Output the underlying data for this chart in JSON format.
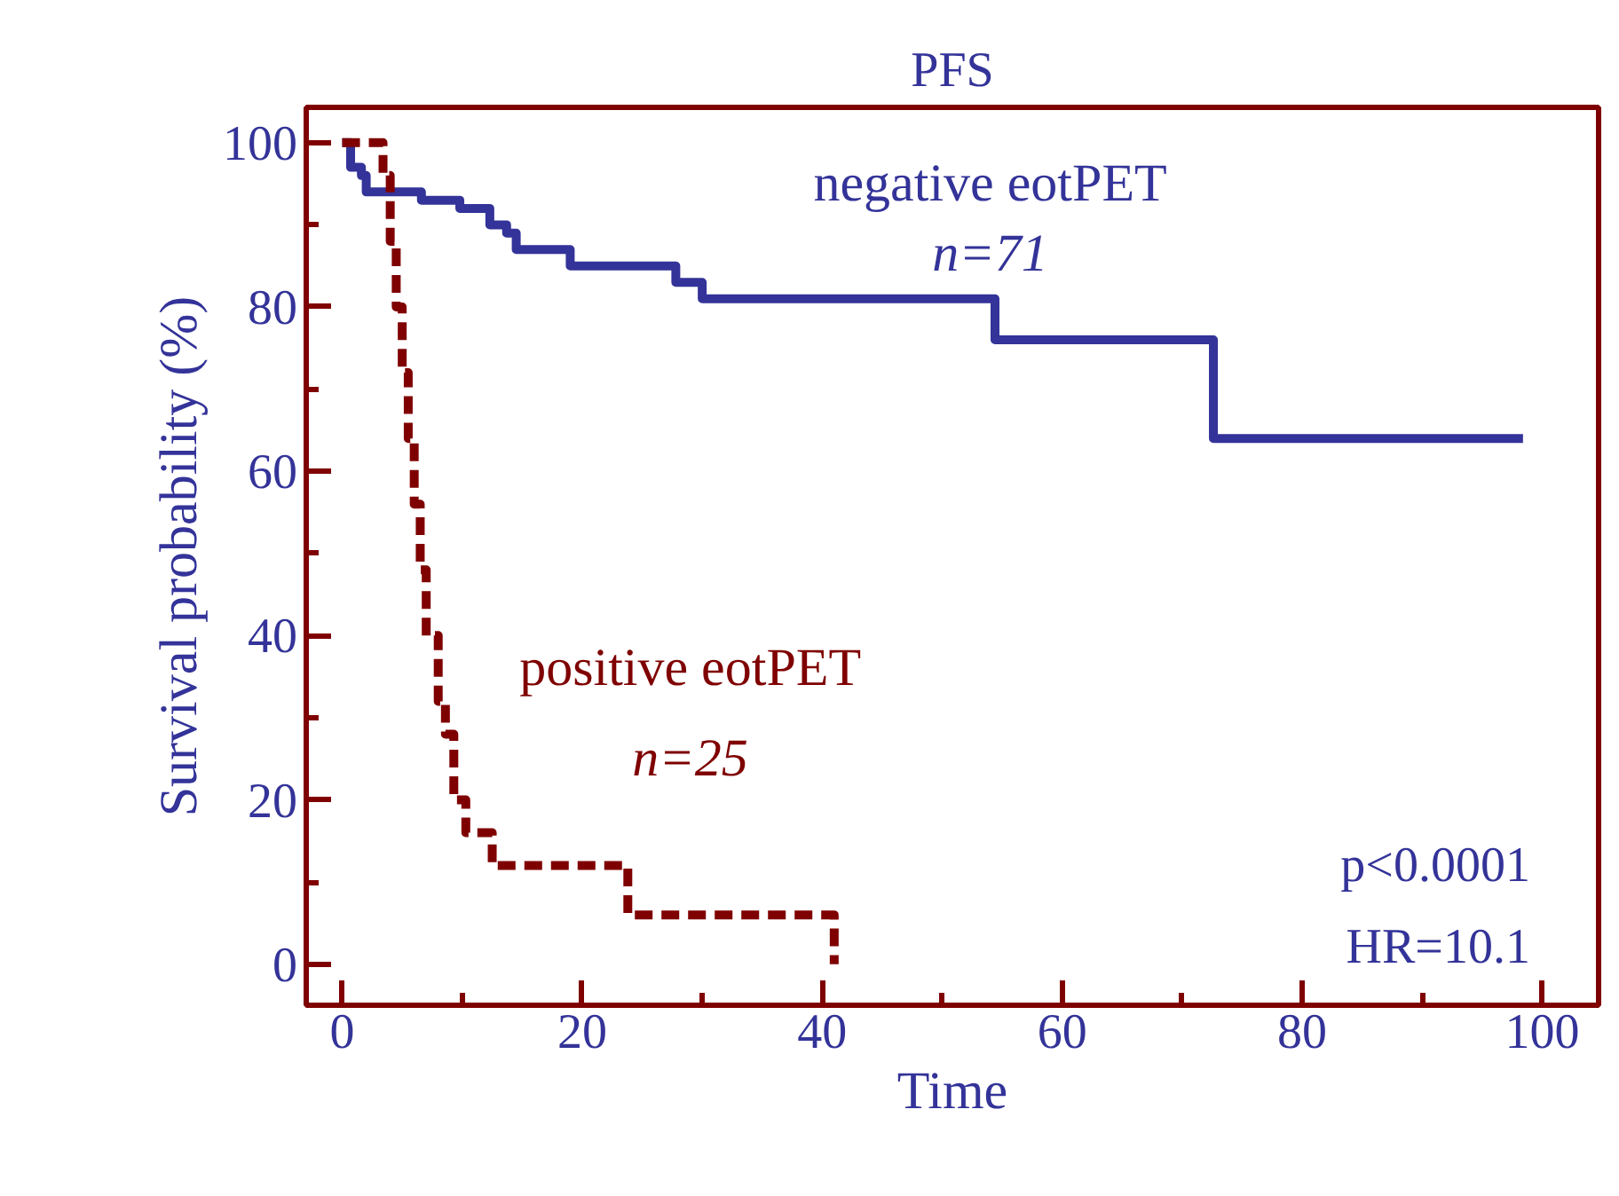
{
  "chart_data": {
    "type": "step",
    "title": "PFS",
    "xlabel": "Time",
    "ylabel": "Survival probability (%)",
    "xlim": [
      -3,
      104.7
    ],
    "ylim": [
      -5,
      104.3
    ],
    "xticks": [
      0,
      20,
      40,
      60,
      80,
      100
    ],
    "yticks": [
      0,
      20,
      40,
      60,
      80,
      100
    ],
    "grid": false,
    "marker": "none",
    "series": [
      {
        "name": "negative eotPET",
        "color": "#333399",
        "line_style": "solid",
        "x": [
          0,
          0.7,
          1.6,
          2,
          6.6,
          9.8,
          12.3,
          13.7,
          14.5,
          19,
          27.8,
          30,
          54.4,
          72.6,
          98.4
        ],
        "values": [
          100,
          97,
          96,
          94,
          93,
          92,
          90,
          89,
          87,
          85,
          83,
          81,
          76,
          64,
          64
        ]
      },
      {
        "name": "positive eotPET",
        "color": "#7f0000",
        "line_style": "dashed",
        "x": [
          0,
          3.4,
          4,
          4.5,
          5,
          5.5,
          6,
          6.5,
          7,
          8,
          8.6,
          9.3,
          10.3,
          12.5,
          23.8,
          41
        ],
        "values": [
          100,
          96,
          88,
          80,
          72,
          64,
          56,
          48,
          40,
          32,
          28,
          20,
          16,
          12,
          6,
          0
        ]
      }
    ],
    "annotations": [
      "n=71",
      "n=25",
      "p<0.0001",
      "HR=10.1"
    ]
  }
}
